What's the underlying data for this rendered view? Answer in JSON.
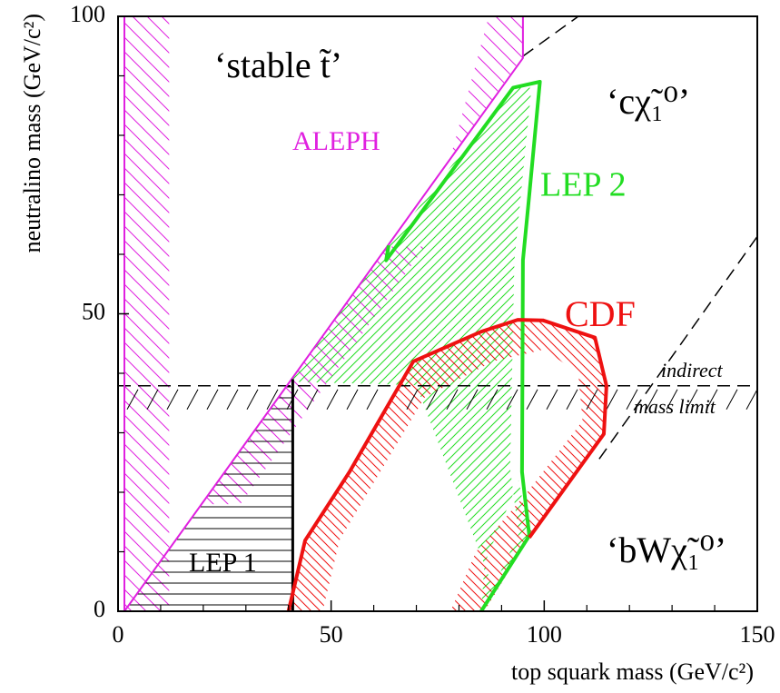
{
  "chart_data": {
    "type": "line",
    "x_label": "top squark mass (GeV/c²)",
    "y_label": "neutralino mass (GeV/c²)",
    "xlim": [
      0,
      150
    ],
    "ylim": [
      0,
      100
    ],
    "xticks": [
      0,
      50,
      100,
      150
    ],
    "yticks": [
      0,
      50,
      100
    ],
    "xminorticks": [
      10,
      20,
      30,
      40,
      60,
      70,
      80,
      90,
      110,
      120,
      130,
      140
    ],
    "yminorticks": [
      10,
      20,
      30,
      40,
      60,
      70,
      80,
      90
    ],
    "series": [
      {
        "name": "ALEPH",
        "color": "#e020e0",
        "x": [
          1.5,
          1.5,
          95,
          95
        ],
        "y": [
          100,
          0,
          93,
          100
        ],
        "hatch": [
          {
            "x": [
              1.5,
              12,
              12,
              1.5
            ],
            "y": [
              0,
              0,
              100,
              100
            ]
          },
          {
            "x": [
              19.7,
              63,
              72,
              28.7
            ],
            "y": [
              18,
              61.3,
              61.3,
              18
            ]
          },
          {
            "x": [
              78,
              95,
              95,
              87
            ],
            "y": [
              76.3,
              93.3,
              100,
              100
            ]
          }
        ]
      },
      {
        "name": "LEP 1",
        "color": "#000000",
        "x": [
          41,
          41
        ],
        "y": [
          0,
          39
        ],
        "hatch": [
          {
            "x": [
              1.5,
              41,
              41
            ],
            "y": [
              0,
              0,
              39.5
            ]
          }
        ]
      },
      {
        "name": "LEP 2",
        "color": "#22dd22",
        "x": [
          85.2,
          96.5,
          94.8,
          95,
          96.5,
          99,
          92.7,
          62.9,
          63.5
        ],
        "y": [
          0,
          12.7,
          23.4,
          59,
          70,
          89,
          88,
          59,
          61.5
        ],
        "hatch": [
          {
            "x": [
              40.5,
              63.5,
              92.7,
              97,
              93,
              92,
              94,
              88,
              70
            ],
            "y": [
              38.6,
              61.5,
              88,
              88,
              59,
              24,
              13,
              4,
              38
            ]
          },
          {
            "x": [
              85.2,
              96.5,
              94,
              86
            ],
            "y": [
              0,
              12.7,
              22,
              8
            ]
          }
        ]
      },
      {
        "name": "CDF",
        "color": "#ee1111",
        "x": [
          40,
          43.9,
          54.3,
          69.3,
          85.2,
          93.8,
          99.7,
          111.9,
          114.6,
          114,
          96.5
        ],
        "y": [
          0,
          11.9,
          23.4,
          42,
          47,
          49,
          48.9,
          46,
          37.9,
          29.8,
          12.4
        ],
        "hatch": [
          {
            "x": [
              40,
              43.9,
              54.3,
              69.3,
              85.2,
              93.8,
              99.7,
              111.9,
              114.6,
              114,
              96.5,
              86,
              78
            ],
            "y": [
              0,
              11.9,
              23.4,
              42,
              47,
              49,
              48.9,
              46,
              37.9,
              29.8,
              12.4,
              0,
              0
            ]
          },
          {
            "x": [
              48,
              52,
              62,
              72,
              88,
              100,
              108,
              109,
              96,
              84,
              78
            ],
            "y": [
              0,
              12,
              24,
              36,
              42,
              44,
              40,
              32,
              20,
              10,
              0
            ]
          }
        ]
      }
    ],
    "lines": [
      {
        "style": "dashed",
        "color": "#000000",
        "x": [
          0,
          150
        ],
        "y": [
          37.9,
          37.9
        ]
      },
      {
        "style": "dashed",
        "color": "#000000",
        "x": [
          95,
          108
        ],
        "y": [
          93.3,
          100
        ]
      },
      {
        "style": "dashed",
        "color": "#000000",
        "x": [
          112.9,
          150
        ],
        "y": [
          25.6,
          63
        ]
      }
    ],
    "annotations": [
      {
        "text": "‘stable t̃’"
      },
      {
        "text": "‘cχ̃₁⁰’"
      },
      {
        "text": "‘bWχ̃₁⁰’"
      },
      {
        "text": "indirect"
      },
      {
        "text": "mass limit"
      }
    ]
  }
}
